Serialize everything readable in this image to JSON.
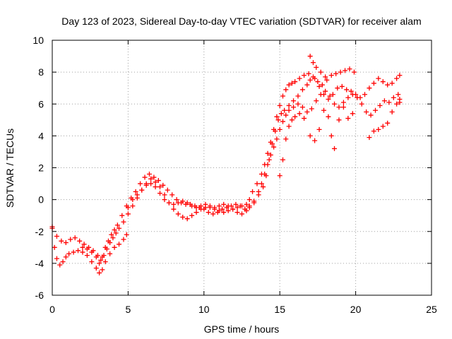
{
  "chart_data": {
    "type": "scatter",
    "title": "Day 123 of 2023, Sidereal Day-to-day VTEC variation (SDTVAR) for receiver alam",
    "xlabel": "GPS time / hours",
    "ylabel": "SDTVAR / TECUs",
    "xlim": [
      0,
      25
    ],
    "ylim": [
      -6,
      10
    ],
    "xticks": [
      "0",
      "5",
      "10",
      "15",
      "20",
      "25"
    ],
    "yticks": [
      "-6",
      "-4",
      "-2",
      "0",
      "2",
      "4",
      "6",
      "8",
      "10"
    ],
    "grid": true,
    "marker": "+",
    "color": "#ff0000",
    "series": [
      {
        "name": "SDTVAR",
        "points": [
          [
            0.0,
            -1.8
          ],
          [
            0.15,
            -3.0
          ],
          [
            0.3,
            -3.7
          ],
          [
            0.5,
            -4.1
          ],
          [
            0.7,
            -3.9
          ],
          [
            0.9,
            -3.6
          ],
          [
            1.1,
            -3.4
          ],
          [
            1.4,
            -3.3
          ],
          [
            1.7,
            -3.2
          ],
          [
            2.0,
            -3.3
          ],
          [
            2.3,
            -3.5
          ],
          [
            2.6,
            -3.9
          ],
          [
            2.9,
            -4.3
          ],
          [
            3.1,
            -4.6
          ],
          [
            3.3,
            -4.4
          ],
          [
            3.5,
            -3.9
          ],
          [
            3.8,
            -3.4
          ],
          [
            4.1,
            -3.0
          ],
          [
            4.4,
            -2.8
          ],
          [
            4.7,
            -2.5
          ],
          [
            4.9,
            -2.2
          ],
          [
            0.0,
            -1.7
          ],
          [
            0.3,
            -2.3
          ],
          [
            0.6,
            -2.6
          ],
          [
            0.9,
            -2.7
          ],
          [
            1.2,
            -2.5
          ],
          [
            1.5,
            -2.4
          ],
          [
            1.8,
            -2.6
          ],
          [
            2.1,
            -2.8
          ],
          [
            2.4,
            -3.0
          ],
          [
            2.7,
            -3.2
          ],
          [
            3.0,
            -3.5
          ],
          [
            3.2,
            -3.8
          ],
          [
            3.4,
            -3.5
          ],
          [
            3.6,
            -3.1
          ],
          [
            3.8,
            -2.7
          ],
          [
            4.0,
            -2.4
          ],
          [
            4.2,
            -2.1
          ],
          [
            4.4,
            -1.8
          ],
          [
            4.7,
            -1.4
          ],
          [
            5.0,
            -0.9
          ],
          [
            5.3,
            -0.4
          ],
          [
            5.6,
            0.1
          ],
          [
            5.9,
            0.6
          ],
          [
            6.2,
            1.0
          ],
          [
            6.5,
            1.3
          ],
          [
            6.8,
            1.1
          ],
          [
            7.1,
            0.8
          ],
          [
            7.4,
            0.3
          ],
          [
            7.7,
            -0.2
          ],
          [
            8.0,
            -0.6
          ],
          [
            8.3,
            -0.9
          ],
          [
            8.6,
            -1.1
          ],
          [
            8.9,
            -1.2
          ],
          [
            9.2,
            -1.0
          ],
          [
            9.5,
            -0.8
          ],
          [
            9.8,
            -0.6
          ],
          [
            10.1,
            -0.5
          ],
          [
            10.4,
            -0.5
          ],
          [
            10.7,
            -0.6
          ],
          [
            11.0,
            -0.7
          ],
          [
            11.3,
            -0.8
          ],
          [
            11.6,
            -0.7
          ],
          [
            11.9,
            -0.6
          ],
          [
            12.2,
            -0.5
          ],
          [
            12.5,
            -0.4
          ],
          [
            12.8,
            -0.3
          ],
          [
            13.0,
            0.0
          ],
          [
            13.2,
            0.5
          ],
          [
            13.5,
            1.0
          ],
          [
            13.8,
            1.6
          ],
          [
            14.0,
            2.2
          ],
          [
            14.2,
            2.9
          ],
          [
            14.4,
            3.6
          ],
          [
            14.6,
            4.4
          ],
          [
            14.8,
            5.2
          ],
          [
            15.0,
            5.9
          ],
          [
            15.2,
            6.5
          ],
          [
            15.4,
            6.9
          ],
          [
            15.6,
            7.2
          ],
          [
            15.8,
            7.3
          ],
          [
            16.0,
            7.4
          ],
          [
            16.3,
            7.6
          ],
          [
            16.6,
            7.8
          ],
          [
            16.9,
            7.9
          ],
          [
            17.2,
            7.7
          ],
          [
            17.5,
            7.4
          ],
          [
            17.8,
            7.2
          ],
          [
            18.1,
            7.5
          ],
          [
            18.4,
            7.8
          ],
          [
            18.7,
            7.9
          ],
          [
            19.0,
            8.0
          ],
          [
            19.3,
            8.1
          ],
          [
            19.6,
            8.2
          ],
          [
            19.9,
            8.0
          ],
          [
            2.0,
            -3.0
          ],
          [
            2.3,
            -3.1
          ],
          [
            2.6,
            -3.3
          ],
          [
            2.9,
            -3.6
          ],
          [
            3.1,
            -4.0
          ],
          [
            3.3,
            -3.6
          ],
          [
            3.5,
            -3.0
          ],
          [
            3.7,
            -2.6
          ],
          [
            3.9,
            -2.2
          ],
          [
            4.1,
            -1.9
          ],
          [
            4.3,
            -1.6
          ],
          [
            4.6,
            -1.0
          ],
          [
            4.9,
            -0.4
          ],
          [
            5.2,
            0.1
          ],
          [
            5.5,
            0.5
          ],
          [
            5.8,
            1.0
          ],
          [
            6.1,
            1.4
          ],
          [
            6.4,
            1.6
          ],
          [
            6.7,
            1.4
          ],
          [
            7.0,
            1.2
          ],
          [
            7.3,
            0.9
          ],
          [
            7.6,
            0.6
          ],
          [
            7.9,
            0.3
          ],
          [
            8.2,
            0.0
          ],
          [
            8.5,
            -0.2
          ],
          [
            8.8,
            -0.3
          ],
          [
            9.1,
            -0.3
          ],
          [
            9.4,
            -0.4
          ],
          [
            9.7,
            -0.5
          ],
          [
            10.0,
            -0.6
          ],
          [
            10.3,
            -0.8
          ],
          [
            10.6,
            -0.9
          ],
          [
            10.9,
            -0.8
          ],
          [
            11.2,
            -0.6
          ],
          [
            11.5,
            -0.5
          ],
          [
            11.8,
            -0.4
          ],
          [
            12.1,
            -0.3
          ],
          [
            12.4,
            -0.4
          ],
          [
            12.7,
            -0.6
          ],
          [
            13.0,
            -0.5
          ],
          [
            13.3,
            -0.2
          ],
          [
            13.6,
            0.3
          ],
          [
            13.9,
            0.8
          ],
          [
            14.1,
            1.5
          ],
          [
            14.3,
            2.5
          ],
          [
            14.5,
            3.5
          ],
          [
            14.7,
            4.3
          ],
          [
            14.9,
            5.0
          ],
          [
            15.1,
            5.4
          ],
          [
            15.3,
            5.6
          ],
          [
            15.6,
            5.9
          ],
          [
            15.9,
            6.2
          ],
          [
            16.2,
            6.5
          ],
          [
            16.5,
            6.9
          ],
          [
            16.8,
            7.2
          ],
          [
            17.0,
            7.5
          ],
          [
            17.3,
            7.6
          ],
          [
            17.6,
            7.1
          ],
          [
            17.9,
            6.6
          ],
          [
            18.2,
            6.3
          ],
          [
            18.5,
            6.6
          ],
          [
            18.8,
            7.0
          ],
          [
            19.1,
            7.1
          ],
          [
            19.4,
            6.9
          ],
          [
            19.7,
            6.8
          ],
          [
            20.0,
            6.6
          ],
          [
            20.3,
            6.4
          ],
          [
            20.6,
            6.6
          ],
          [
            20.9,
            7.0
          ],
          [
            21.2,
            7.3
          ],
          [
            21.5,
            7.6
          ],
          [
            21.8,
            7.4
          ],
          [
            22.1,
            7.2
          ],
          [
            22.4,
            7.3
          ],
          [
            22.7,
            7.6
          ],
          [
            22.9,
            7.8
          ],
          [
            5.0,
            -0.5
          ],
          [
            5.3,
            0.0
          ],
          [
            5.6,
            0.3
          ],
          [
            5.9,
            0.6
          ],
          [
            6.2,
            0.9
          ],
          [
            6.5,
            1.0
          ],
          [
            6.8,
            0.8
          ],
          [
            7.1,
            0.4
          ],
          [
            7.4,
            0.0
          ],
          [
            7.7,
            -0.2
          ],
          [
            8.0,
            -0.3
          ],
          [
            8.3,
            -0.2
          ],
          [
            8.6,
            -0.1
          ],
          [
            8.9,
            -0.2
          ],
          [
            9.2,
            -0.4
          ],
          [
            9.5,
            -0.5
          ],
          [
            9.8,
            -0.4
          ],
          [
            10.1,
            -0.3
          ],
          [
            10.4,
            -0.4
          ],
          [
            10.7,
            -0.5
          ],
          [
            11.0,
            -0.4
          ],
          [
            11.3,
            -0.3
          ],
          [
            11.6,
            -0.4
          ],
          [
            11.9,
            -0.6
          ],
          [
            12.2,
            -0.8
          ],
          [
            12.5,
            -0.9
          ],
          [
            12.8,
            -0.7
          ],
          [
            13.0,
            -0.4
          ],
          [
            13.3,
            -0.1
          ],
          [
            13.6,
            0.5
          ],
          [
            13.8,
            1.0
          ],
          [
            14.0,
            1.6
          ],
          [
            14.2,
            2.2
          ],
          [
            14.4,
            2.8
          ],
          [
            14.6,
            3.3
          ],
          [
            14.8,
            3.8
          ],
          [
            15.0,
            4.4
          ],
          [
            15.2,
            4.9
          ],
          [
            15.4,
            5.3
          ],
          [
            15.6,
            5.6
          ],
          [
            15.9,
            5.8
          ],
          [
            16.2,
            6.0
          ],
          [
            16.5,
            5.8
          ],
          [
            16.8,
            5.5
          ],
          [
            17.1,
            5.7
          ],
          [
            17.4,
            6.2
          ],
          [
            17.7,
            6.6
          ],
          [
            18.0,
            6.8
          ],
          [
            18.3,
            6.5
          ],
          [
            18.6,
            6.0
          ],
          [
            18.9,
            5.8
          ],
          [
            19.2,
            6.1
          ],
          [
            19.5,
            6.4
          ],
          [
            19.8,
            6.6
          ],
          [
            20.1,
            6.4
          ],
          [
            20.4,
            6.0
          ],
          [
            20.7,
            5.5
          ],
          [
            21.0,
            5.3
          ],
          [
            21.3,
            5.6
          ],
          [
            21.6,
            5.9
          ],
          [
            21.9,
            6.2
          ],
          [
            22.2,
            6.1
          ],
          [
            22.5,
            6.4
          ],
          [
            22.8,
            6.6
          ],
          [
            22.9,
            6.3
          ],
          [
            15.0,
            1.5
          ],
          [
            15.2,
            2.5
          ],
          [
            15.4,
            3.8
          ],
          [
            15.6,
            4.6
          ],
          [
            15.8,
            5.0
          ],
          [
            16.0,
            5.2
          ],
          [
            16.3,
            5.4
          ],
          [
            16.6,
            5.1
          ],
          [
            17.0,
            4.0
          ],
          [
            17.3,
            3.7
          ],
          [
            17.6,
            4.4
          ],
          [
            17.9,
            5.6
          ],
          [
            18.2,
            5.2
          ],
          [
            18.4,
            4.0
          ],
          [
            18.6,
            3.2
          ],
          [
            18.9,
            5.0
          ],
          [
            19.2,
            5.8
          ],
          [
            19.5,
            5.1
          ],
          [
            19.8,
            5.4
          ],
          [
            20.9,
            3.9
          ],
          [
            21.2,
            4.3
          ],
          [
            21.5,
            4.4
          ],
          [
            21.8,
            4.6
          ],
          [
            22.1,
            4.8
          ],
          [
            22.4,
            5.5
          ],
          [
            22.7,
            6.0
          ],
          [
            22.9,
            6.1
          ],
          [
            17.0,
            9.0
          ],
          [
            17.2,
            8.6
          ],
          [
            17.4,
            8.3
          ],
          [
            17.7,
            8.0
          ],
          [
            18.0,
            7.7
          ]
        ]
      }
    ]
  }
}
